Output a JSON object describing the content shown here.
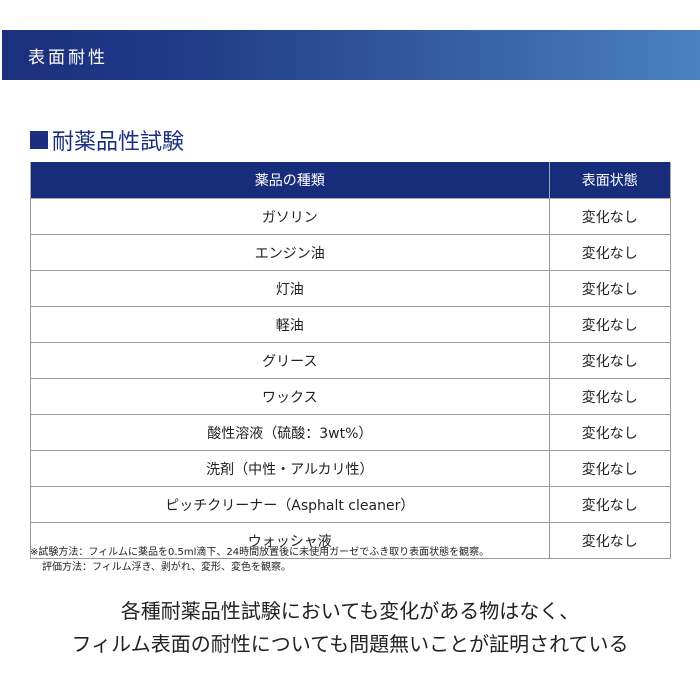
{
  "banner": {
    "title": "表面耐性"
  },
  "section": {
    "title": "耐薬品性試験"
  },
  "table": {
    "headers": [
      "薬品の種類",
      "表面状態"
    ],
    "rows": [
      [
        "ガソリン",
        "変化なし"
      ],
      [
        "エンジン油",
        "変化なし"
      ],
      [
        "灯油",
        "変化なし"
      ],
      [
        "軽油",
        "変化なし"
      ],
      [
        "グリース",
        "変化なし"
      ],
      [
        "ワックス",
        "変化なし"
      ],
      [
        "酸性溶液（硫酸：3wt%）",
        "変化なし"
      ],
      [
        "洗剤（中性・アルカリ性）",
        "変化なし"
      ],
      [
        "ピッチクリーナー（Asphalt cleaner）",
        "変化なし"
      ],
      [
        "ウォッシャ液",
        "変化なし"
      ]
    ]
  },
  "notes": [
    "※試験方法：フィルムに薬品を0.5ml滴下、24時間放置後に未使用ガーゼでふき取り表面状態を観察。",
    "評価方法：フィルム浮き、剥がれ、変形、変色を観察。"
  ],
  "conclusion": [
    "各種耐薬品性試験においても変化がある物はなく、",
    "フィルム表面の耐性についても問題無いことが証明されている"
  ]
}
